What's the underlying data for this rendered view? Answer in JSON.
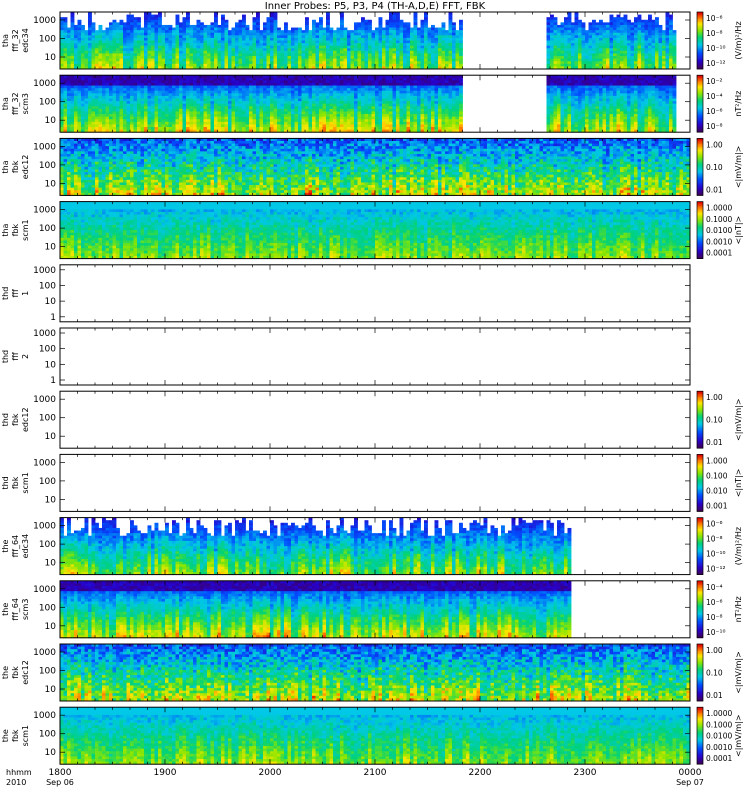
{
  "title": "Inner Probes: P5, P3, P4 (TH-A,D,E) FFT, FBK",
  "chart_data": {
    "type": "heatmap",
    "title": "Inner Probes: P5, P3, P4 (TH-A,D,E) FFT, FBK",
    "time_axis": {
      "ticks": [
        "1800",
        "1900",
        "2000",
        "2100",
        "2200",
        "2300",
        "0000"
      ],
      "tick_values_hours": [
        18,
        19,
        20,
        21,
        22,
        23,
        24
      ],
      "range_hours": [
        18,
        24
      ],
      "row1_label": "hhmm",
      "row2_label": "2010",
      "start_date": "Sep 06",
      "end_date": "Sep 07"
    },
    "panels": [
      {
        "id": "tha_fff_32_edc34",
        "ylabel": [
          "tha",
          "fff_32",
          "edc34"
        ],
        "yticks": [
          "1000",
          "100",
          "10"
        ],
        "cbar_ticks": [
          "10⁻⁶",
          "10⁻⁸",
          "10⁻¹⁰",
          "10⁻¹²"
        ],
        "cbar_label": "(V/m)²/Hz",
        "data_range_hours": [
          [
            18.0,
            21.82
          ],
          [
            22.62,
            23.87
          ]
        ],
        "style": "fft"
      },
      {
        "id": "tha_fff_32_scm3",
        "ylabel": [
          "tha",
          "fff_32",
          "scm3"
        ],
        "yticks": [
          "1000",
          "100",
          "10"
        ],
        "cbar_ticks": [
          "10⁻²",
          "10⁻⁴",
          "10⁻⁶",
          "10⁻⁸"
        ],
        "cbar_label": "nT²/Hz",
        "data_range_hours": [
          [
            18.0,
            21.82
          ],
          [
            22.62,
            23.87
          ]
        ],
        "style": "fftscm"
      },
      {
        "id": "tha_fbk_edc12",
        "ylabel": [
          "tha",
          "fbk",
          "edc12"
        ],
        "yticks": [
          "1000",
          "100",
          "10"
        ],
        "cbar_ticks": [
          "1.00",
          "0.10",
          "0.01"
        ],
        "cbar_label": "<|mV/m|>",
        "data_range_hours": [
          [
            18.0,
            24.0
          ]
        ],
        "style": "fbke"
      },
      {
        "id": "tha_fbk_scm1",
        "ylabel": [
          "tha",
          "fbk",
          "scm1"
        ],
        "yticks": [
          "1000",
          "100",
          "10"
        ],
        "cbar_ticks": [
          "1.0000",
          "0.1000",
          "0.0100",
          "0.0010",
          "0.0001"
        ],
        "cbar_label": "<|nT|>",
        "data_range_hours": [
          [
            18.0,
            24.0
          ]
        ],
        "style": "fbkb"
      },
      {
        "id": "thd_fff_1",
        "ylabel": [
          "thd",
          "fff",
          "1"
        ],
        "yticks": [
          "1000",
          "100",
          "10",
          "1"
        ],
        "cbar_ticks": [],
        "cbar_label": "",
        "data_range_hours": [],
        "style": "empty"
      },
      {
        "id": "thd_fff_2",
        "ylabel": [
          "thd",
          "fff",
          "2"
        ],
        "yticks": [
          "1000",
          "100",
          "10",
          "1"
        ],
        "cbar_ticks": [],
        "cbar_label": "",
        "data_range_hours": [],
        "style": "empty"
      },
      {
        "id": "thd_fbk_edc12",
        "ylabel": [
          "thd",
          "fbk",
          "edc12"
        ],
        "yticks": [
          "1000",
          "100",
          "10"
        ],
        "cbar_ticks": [
          "1.00",
          "0.10",
          "0.01"
        ],
        "cbar_label": "<|mV/m|>",
        "data_range_hours": [],
        "style": "empty"
      },
      {
        "id": "thd_fbk_scm1",
        "ylabel": [
          "thd",
          "fbk",
          "scm1"
        ],
        "yticks": [
          "1000",
          "100",
          "10"
        ],
        "cbar_ticks": [
          "1.000",
          "0.100",
          "0.010",
          "0.001"
        ],
        "cbar_label": "<|nT|>",
        "data_range_hours": [],
        "style": "empty"
      },
      {
        "id": "the_fff_64_edc34",
        "ylabel": [
          "the",
          "fff_64",
          "edc34"
        ],
        "yticks": [
          "1000",
          "100",
          "10"
        ],
        "cbar_ticks": [
          "10⁻⁶",
          "10⁻⁸",
          "10⁻¹⁰",
          "10⁻¹²"
        ],
        "cbar_label": "(V/m)²/Hz",
        "data_range_hours": [
          [
            18.0,
            22.85
          ]
        ],
        "style": "fft"
      },
      {
        "id": "the_fff_64_scm3",
        "ylabel": [
          "the",
          "fff_64",
          "scm3"
        ],
        "yticks": [
          "1000",
          "100",
          "10"
        ],
        "cbar_ticks": [
          "10⁻⁴",
          "10⁻⁶",
          "10⁻⁸",
          "10⁻¹⁰"
        ],
        "cbar_label": "nT²/Hz",
        "data_range_hours": [
          [
            18.0,
            22.85
          ]
        ],
        "style": "fftscm"
      },
      {
        "id": "the_fbk_edc12",
        "ylabel": [
          "the",
          "fbk",
          "edc12"
        ],
        "yticks": [
          "1000",
          "100",
          "10"
        ],
        "cbar_ticks": [
          "1.00",
          "0.10",
          "0.01"
        ],
        "cbar_label": "<|mV/m|>",
        "data_range_hours": [
          [
            18.0,
            24.0
          ]
        ],
        "style": "fbke"
      },
      {
        "id": "the_fbk_scm1",
        "ylabel": [
          "the",
          "fbk",
          "scm1"
        ],
        "yticks": [
          "1000",
          "100",
          "10"
        ],
        "cbar_ticks": [
          "1.0000",
          "0.1000",
          "0.0100",
          "0.0010",
          "0.0001"
        ],
        "cbar_label": "<|mV/m|>",
        "data_range_hours": [
          [
            18.0,
            24.0
          ]
        ],
        "style": "fbkb"
      }
    ]
  }
}
